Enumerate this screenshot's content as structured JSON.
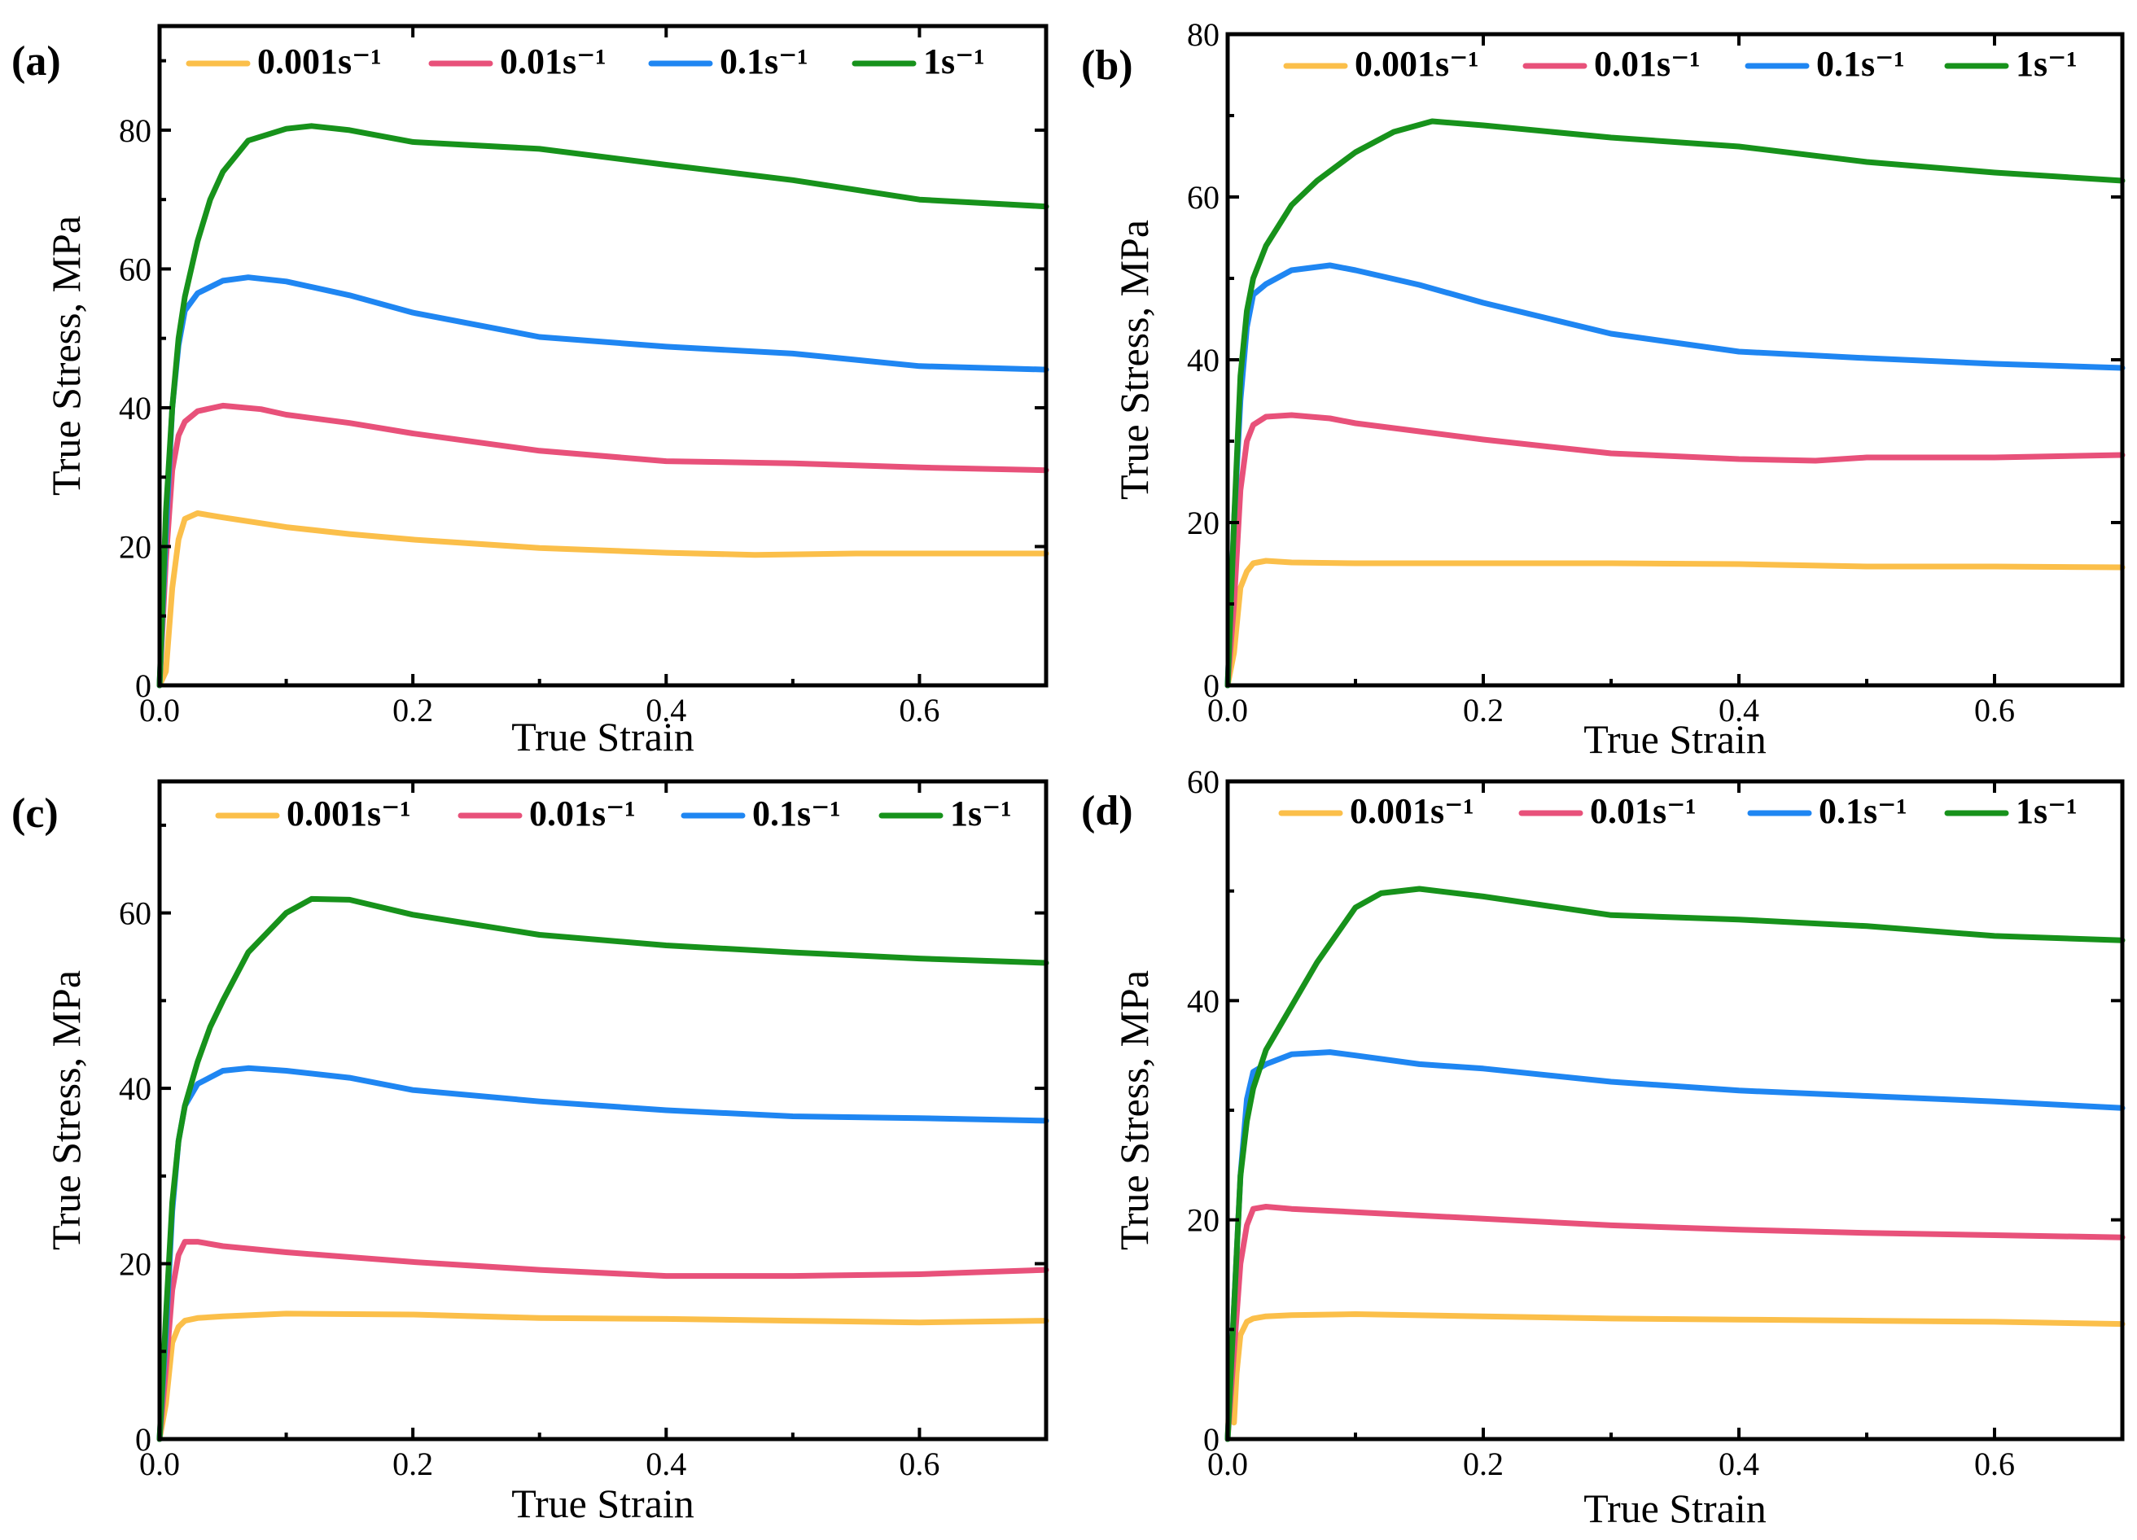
{
  "figure": {
    "colors": {
      "0.001": "#FBBF4A",
      "0.01": "#E8517A",
      "0.1": "#1F86F2",
      "1": "#17921B"
    },
    "legend": [
      "0.001s⁻¹",
      "0.01s⁻¹",
      "0.1s⁻¹",
      "1s⁻¹"
    ]
  },
  "chart_data": [
    {
      "panel": "(a)",
      "type": "line",
      "xlabel": "True Strain",
      "ylabel": "True Stress, MPa",
      "xlim": [
        0,
        0.7
      ],
      "ylim": [
        0,
        95
      ],
      "xticks": [
        0.0,
        0.2,
        0.4,
        0.6
      ],
      "xtick_labels": [
        "0.0",
        "0.2",
        "0.4",
        "0.6"
      ],
      "yticks": [
        0,
        20,
        40,
        60,
        80
      ],
      "ytick_labels": [
        "0",
        "20",
        "40",
        "60",
        "80"
      ],
      "series": [
        {
          "name": "0.001s⁻¹",
          "rate": "0.001",
          "x": [
            0,
            0.005,
            0.01,
            0.015,
            0.02,
            0.03,
            0.05,
            0.1,
            0.15,
            0.2,
            0.3,
            0.4,
            0.47,
            0.55,
            0.6,
            0.7
          ],
          "y": [
            0,
            2,
            14,
            21,
            24,
            24.8,
            24.2,
            22.8,
            21.8,
            21.0,
            19.8,
            19.1,
            18.8,
            19.0,
            19.0,
            19.0
          ]
        },
        {
          "name": "0.01s⁻¹",
          "rate": "0.01",
          "x": [
            0,
            0.005,
            0.01,
            0.015,
            0.02,
            0.03,
            0.05,
            0.08,
            0.1,
            0.15,
            0.2,
            0.3,
            0.4,
            0.5,
            0.6,
            0.7
          ],
          "y": [
            0,
            18,
            31,
            36,
            38,
            39.5,
            40.3,
            39.8,
            39.0,
            37.8,
            36.3,
            33.8,
            32.3,
            32.0,
            31.4,
            31.0
          ]
        },
        {
          "name": "0.1s⁻¹",
          "rate": "0.1",
          "x": [
            0,
            0.005,
            0.01,
            0.015,
            0.02,
            0.03,
            0.05,
            0.07,
            0.1,
            0.15,
            0.2,
            0.3,
            0.4,
            0.5,
            0.6,
            0.7
          ],
          "y": [
            0,
            22,
            40,
            49,
            54,
            56.5,
            58.3,
            58.8,
            58.2,
            56.2,
            53.7,
            50.2,
            48.8,
            47.8,
            46.0,
            45.5
          ]
        },
        {
          "name": "1s⁻¹",
          "rate": "1",
          "x": [
            0,
            0.005,
            0.01,
            0.015,
            0.02,
            0.03,
            0.04,
            0.05,
            0.07,
            0.1,
            0.12,
            0.15,
            0.2,
            0.3,
            0.4,
            0.5,
            0.6,
            0.7
          ],
          "y": [
            0,
            25,
            40,
            50,
            56,
            64,
            70,
            74,
            78.5,
            80.2,
            80.6,
            80.0,
            78.3,
            77.3,
            75.0,
            72.8,
            70.0,
            69.0
          ]
        }
      ]
    },
    {
      "panel": "(b)",
      "type": "line",
      "xlabel": "True Strain",
      "ylabel": "True Stress, MPa",
      "xlim": [
        0,
        0.7
      ],
      "ylim": [
        0,
        80
      ],
      "xticks": [
        0.0,
        0.2,
        0.4,
        0.6
      ],
      "xtick_labels": [
        "0.0",
        "0.2",
        "0.4",
        "0.6"
      ],
      "yticks": [
        0,
        20,
        40,
        60,
        80
      ],
      "ytick_labels": [
        "0",
        "20",
        "40",
        "60",
        "80"
      ],
      "series": [
        {
          "name": "0.001s⁻¹",
          "rate": "0.001",
          "x": [
            0,
            0.005,
            0.01,
            0.015,
            0.02,
            0.03,
            0.05,
            0.1,
            0.2,
            0.3,
            0.4,
            0.5,
            0.6,
            0.7
          ],
          "y": [
            0,
            4,
            12,
            14,
            15,
            15.3,
            15.1,
            15.0,
            15.0,
            15.0,
            14.9,
            14.6,
            14.6,
            14.5
          ]
        },
        {
          "name": "0.01s⁻¹",
          "rate": "0.01",
          "x": [
            0,
            0.005,
            0.01,
            0.015,
            0.02,
            0.03,
            0.05,
            0.08,
            0.1,
            0.15,
            0.2,
            0.3,
            0.4,
            0.46,
            0.5,
            0.6,
            0.7
          ],
          "y": [
            0,
            10,
            24,
            30,
            32,
            33,
            33.2,
            32.8,
            32.2,
            31.2,
            30.2,
            28.5,
            27.8,
            27.6,
            28.0,
            28.0,
            28.3
          ]
        },
        {
          "name": "0.1s⁻¹",
          "rate": "0.1",
          "x": [
            0,
            0.005,
            0.01,
            0.015,
            0.02,
            0.03,
            0.05,
            0.08,
            0.1,
            0.15,
            0.2,
            0.3,
            0.4,
            0.5,
            0.6,
            0.7
          ],
          "y": [
            0,
            20,
            35,
            44,
            48,
            49.3,
            51.0,
            51.6,
            51.0,
            49.2,
            47.0,
            43.2,
            41.0,
            40.2,
            39.5,
            39.0
          ]
        },
        {
          "name": "1s⁻¹",
          "rate": "1",
          "x": [
            0,
            0.005,
            0.01,
            0.015,
            0.02,
            0.03,
            0.04,
            0.05,
            0.07,
            0.1,
            0.13,
            0.16,
            0.2,
            0.3,
            0.4,
            0.5,
            0.6,
            0.7
          ],
          "y": [
            0,
            20,
            38,
            46,
            50,
            54,
            56.5,
            59,
            62,
            65.5,
            68,
            69.3,
            68.8,
            67.3,
            66.2,
            64.3,
            63.0,
            62.0
          ]
        }
      ]
    },
    {
      "panel": "(c)",
      "type": "line",
      "xlabel": "True Strain",
      "ylabel": "True Stress, MPa",
      "xlim": [
        0,
        0.7
      ],
      "ylim": [
        0,
        75
      ],
      "xticks": [
        0.0,
        0.2,
        0.4,
        0.6
      ],
      "xtick_labels": [
        "0.0",
        "0.2",
        "0.4",
        "0.6"
      ],
      "yticks": [
        0,
        20,
        40,
        60
      ],
      "ytick_labels": [
        "0",
        "20",
        "40",
        "60"
      ],
      "series": [
        {
          "name": "0.001s⁻¹",
          "rate": "0.001",
          "x": [
            0,
            0.005,
            0.01,
            0.015,
            0.02,
            0.03,
            0.05,
            0.1,
            0.2,
            0.3,
            0.4,
            0.5,
            0.6,
            0.7
          ],
          "y": [
            0,
            4,
            11,
            12.8,
            13.5,
            13.8,
            14.0,
            14.3,
            14.2,
            13.8,
            13.7,
            13.5,
            13.3,
            13.5
          ]
        },
        {
          "name": "0.01s⁻¹",
          "rate": "0.01",
          "x": [
            0,
            0.005,
            0.01,
            0.015,
            0.02,
            0.03,
            0.05,
            0.1,
            0.2,
            0.3,
            0.4,
            0.5,
            0.6,
            0.7
          ],
          "y": [
            0,
            8,
            17,
            21,
            22.5,
            22.5,
            22.0,
            21.3,
            20.2,
            19.3,
            18.6,
            18.6,
            18.8,
            19.3
          ]
        },
        {
          "name": "0.1s⁻¹",
          "rate": "0.1",
          "x": [
            0,
            0.005,
            0.01,
            0.015,
            0.02,
            0.03,
            0.05,
            0.07,
            0.1,
            0.15,
            0.2,
            0.3,
            0.4,
            0.5,
            0.6,
            0.7
          ],
          "y": [
            0,
            12,
            26,
            34,
            38,
            40.5,
            42.0,
            42.3,
            42.0,
            41.2,
            39.8,
            38.5,
            37.5,
            36.8,
            36.6,
            36.3
          ]
        },
        {
          "name": "1s⁻¹",
          "rate": "1",
          "x": [
            0,
            0.005,
            0.01,
            0.015,
            0.02,
            0.03,
            0.04,
            0.05,
            0.07,
            0.1,
            0.12,
            0.15,
            0.2,
            0.3,
            0.4,
            0.5,
            0.6,
            0.7
          ],
          "y": [
            0,
            14,
            27,
            34,
            38,
            43,
            47,
            50,
            55.5,
            60,
            61.6,
            61.5,
            59.8,
            57.5,
            56.3,
            55.5,
            54.8,
            54.3
          ]
        }
      ]
    },
    {
      "panel": "(d)",
      "type": "line",
      "xlabel": "True Strain",
      "ylabel": "True Stress, MPa",
      "xlim": [
        0,
        0.7
      ],
      "ylim": [
        0,
        60
      ],
      "xticks": [
        0.0,
        0.2,
        0.4,
        0.6
      ],
      "xtick_labels": [
        "0.0",
        "0.2",
        "0.4",
        "0.6"
      ],
      "yticks": [
        0,
        20,
        40,
        60
      ],
      "ytick_labels": [
        "0",
        "20",
        "40",
        "60"
      ],
      "series": [
        {
          "name": "0.001s⁻¹",
          "rate": "0.001",
          "x": [
            0,
            0.003,
            0.005,
            0.007,
            0.01,
            0.015,
            0.02,
            0.03,
            0.05,
            0.1,
            0.2,
            0.3,
            0.4,
            0.5,
            0.6,
            0.7
          ],
          "y": [
            0,
            9,
            1.5,
            6,
            9.5,
            10.7,
            11.0,
            11.2,
            11.3,
            11.4,
            11.2,
            11.0,
            10.9,
            10.8,
            10.7,
            10.5
          ]
        },
        {
          "name": "0.01s⁻¹",
          "rate": "0.01",
          "x": [
            0,
            0.005,
            0.01,
            0.015,
            0.02,
            0.03,
            0.05,
            0.1,
            0.2,
            0.3,
            0.4,
            0.5,
            0.6,
            0.7
          ],
          "y": [
            0,
            8,
            16,
            19.5,
            21.0,
            21.2,
            21.0,
            20.7,
            20.1,
            19.5,
            19.1,
            18.8,
            18.6,
            18.4
          ]
        },
        {
          "name": "0.1s⁻¹",
          "rate": "0.1",
          "x": [
            0,
            0.005,
            0.01,
            0.015,
            0.02,
            0.03,
            0.05,
            0.08,
            0.1,
            0.15,
            0.2,
            0.3,
            0.4,
            0.5,
            0.6,
            0.7
          ],
          "y": [
            0,
            12,
            24,
            31,
            33.5,
            34.2,
            35.1,
            35.3,
            35.0,
            34.2,
            33.8,
            32.6,
            31.8,
            31.3,
            30.8,
            30.2
          ]
        },
        {
          "name": "1s⁻¹",
          "rate": "1",
          "x": [
            0,
            0.005,
            0.01,
            0.015,
            0.02,
            0.03,
            0.04,
            0.05,
            0.07,
            0.1,
            0.12,
            0.15,
            0.2,
            0.3,
            0.4,
            0.5,
            0.6,
            0.7
          ],
          "y": [
            0,
            12,
            24,
            29,
            32,
            35.5,
            37.5,
            39.5,
            43.5,
            48.5,
            49.8,
            50.2,
            49.5,
            47.8,
            47.4,
            46.8,
            45.9,
            45.5
          ]
        }
      ]
    }
  ]
}
